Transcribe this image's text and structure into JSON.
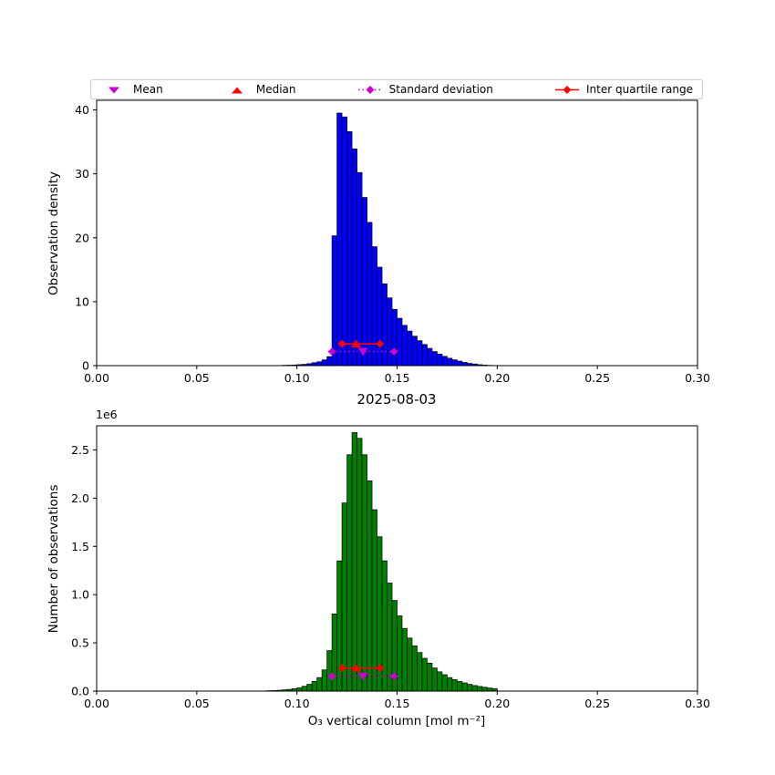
{
  "title": "2025-08-03",
  "legend": {
    "items": [
      {
        "label": "Mean",
        "symbol": "triangle-down",
        "color": "#cc00cc"
      },
      {
        "label": "Median",
        "symbol": "triangle-up",
        "color": "#ff0000"
      },
      {
        "label": "Standard deviation",
        "symbol": "diamond-dotted-line",
        "color": "#cc00cc"
      },
      {
        "label": "Inter quartile range",
        "symbol": "diamond-solid-line",
        "color": "#ff0000"
      }
    ]
  },
  "chart_data": [
    {
      "type": "histogram",
      "panel": "top",
      "ylabel": "Observation density",
      "xlim": [
        0.0,
        0.3
      ],
      "ylim": [
        0.0,
        41.5
      ],
      "xticks": [
        0.0,
        0.05,
        0.1,
        0.15,
        0.2,
        0.25,
        0.3
      ],
      "xtick_labels": [
        "0.00",
        "0.05",
        "0.10",
        "0.15",
        "0.20",
        "0.25",
        "0.30"
      ],
      "yticks": [
        0,
        10,
        20,
        30,
        40
      ],
      "ytick_labels": [
        "0",
        "10",
        "20",
        "30",
        "40"
      ],
      "bar_color": "#0000ff",
      "edge_color": "#000000",
      "bin_start": 0.0925,
      "bin_width": 0.0025,
      "values": [
        0.05,
        0.07,
        0.1,
        0.15,
        0.2,
        0.3,
        0.45,
        0.6,
        0.9,
        1.4,
        20.3,
        39.5,
        38.9,
        36.6,
        33.9,
        30.2,
        26.3,
        22.4,
        18.6,
        15.4,
        12.8,
        10.6,
        8.8,
        7.4,
        6.3,
        5.4,
        4.6,
        3.9,
        3.3,
        2.7,
        2.2,
        1.8,
        1.45,
        1.15,
        0.9,
        0.7,
        0.5,
        0.35,
        0.25,
        0.15,
        0.08,
        0.04
      ],
      "stats": {
        "mean": 0.133,
        "mean_y": 2.2,
        "median": 0.1295,
        "median_y": 3.4,
        "std_range": [
          0.1175,
          0.1485
        ],
        "std_y": 2.2,
        "iqr_range": [
          0.1225,
          0.1415
        ],
        "iqr_y": 3.4
      }
    },
    {
      "type": "histogram",
      "panel": "bottom",
      "ylabel": "Number of observations",
      "xlabel": "O₃ vertical column [mol m⁻²]",
      "y_offset_label": "1e6",
      "xlim": [
        0.0,
        0.3
      ],
      "ylim": [
        0.0,
        2.75
      ],
      "xticks": [
        0.0,
        0.05,
        0.1,
        0.15,
        0.2,
        0.25,
        0.3
      ],
      "xtick_labels": [
        "0.00",
        "0.05",
        "0.10",
        "0.15",
        "0.20",
        "0.25",
        "0.30"
      ],
      "yticks": [
        0.0,
        0.5,
        1.0,
        1.5,
        2.0,
        2.5
      ],
      "ytick_labels": [
        "0.0",
        "0.5",
        "1.0",
        "1.5",
        "2.0",
        "2.5"
      ],
      "bar_color": "#008000",
      "edge_color": "#000000",
      "bin_start": 0.085,
      "bin_width": 0.0025,
      "values": [
        0.004,
        0.006,
        0.009,
        0.013,
        0.018,
        0.025,
        0.035,
        0.05,
        0.07,
        0.1,
        0.14,
        0.22,
        0.42,
        0.8,
        1.35,
        1.95,
        2.45,
        2.68,
        2.62,
        2.45,
        2.18,
        1.88,
        1.6,
        1.35,
        1.12,
        0.94,
        0.78,
        0.65,
        0.55,
        0.47,
        0.4,
        0.34,
        0.29,
        0.24,
        0.2,
        0.17,
        0.14,
        0.12,
        0.1,
        0.085,
        0.07,
        0.058,
        0.048,
        0.04,
        0.032,
        0.026
      ],
      "stats": {
        "mean": 0.133,
        "mean_y": 0.155,
        "median": 0.1295,
        "median_y": 0.24,
        "std_range": [
          0.1175,
          0.1485
        ],
        "std_y": 0.155,
        "iqr_range": [
          0.1225,
          0.1415
        ],
        "iqr_y": 0.24
      }
    }
  ]
}
